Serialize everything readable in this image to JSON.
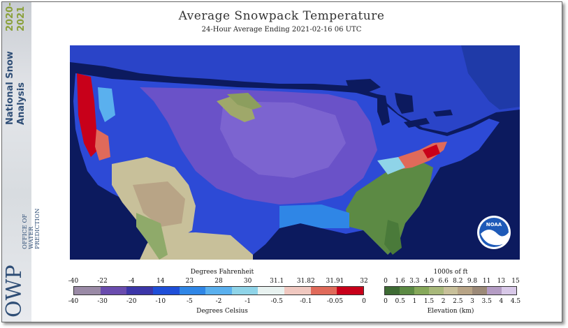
{
  "title": "Average Snowpack Temperature",
  "subtitle": "24-Hour Average Ending 2021-02-16 06 UTC",
  "sidebar": {
    "product_line1": "National Snow",
    "product_line2": "Analysis",
    "year1": "2020-",
    "year2": "2021",
    "org_acronym": "OWP",
    "org_line1": "OFFICE OF",
    "org_line2": "WATER",
    "org_line3": "PREDICTION"
  },
  "logo": {
    "text": "NOAA"
  },
  "temperature_legend": {
    "fahrenheit_title": "Degrees Fahrenheit",
    "celsius_title": "Degrees Celsius",
    "fahrenheit_ticks": [
      "-40",
      "-22",
      "-4",
      "14",
      "23",
      "28",
      "30",
      "31.1",
      "31.82",
      "31.91",
      "32"
    ],
    "celsius_ticks": [
      "-40",
      "-30",
      "-20",
      "-10",
      "-5",
      "-2",
      "-1",
      "-0.5",
      "-0.1",
      "-0.05",
      "0"
    ],
    "colors": [
      "#9a8aa6",
      "#6a4cae",
      "#3c36a8",
      "#1f4fd8",
      "#2f86e6",
      "#5ab0ee",
      "#8fd4e8",
      "#e8f2f0",
      "#f0c8c0",
      "#e06a5a",
      "#c8001a"
    ]
  },
  "elevation_legend": {
    "feet_title": "1000s of ft",
    "km_title": "Elevation (km)",
    "feet_ticks": [
      "0",
      "1.6",
      "3.3",
      "4.9",
      "6.6",
      "8.2",
      "9.8",
      "11",
      "13",
      "15"
    ],
    "km_ticks": [
      "0",
      "0.5",
      "1",
      "1.5",
      "2",
      "2.5",
      "3",
      "3.5",
      "4",
      "4.5"
    ],
    "colors": [
      "#3e6b34",
      "#5c8a44",
      "#86a85a",
      "#a8b87a",
      "#c8c09a",
      "#b8a486",
      "#9c8a78",
      "#b49cc4",
      "#d8c8e8"
    ]
  }
}
